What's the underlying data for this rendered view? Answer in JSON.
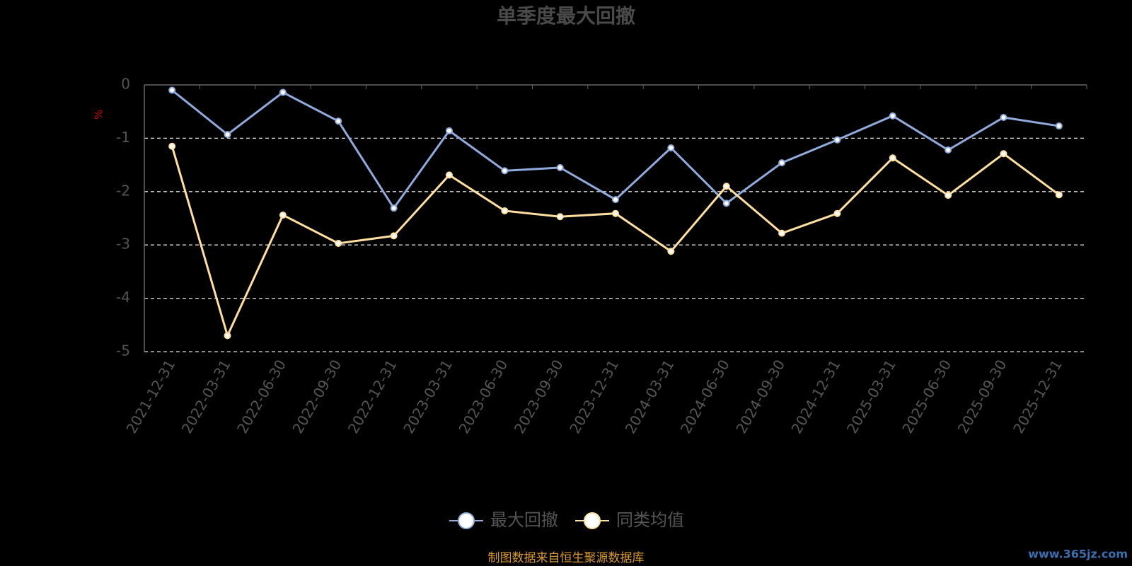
{
  "chart_data": {
    "type": "line",
    "title": "单季度最大回撤",
    "y_label": "%",
    "categories": [
      "2021-12-31",
      "2022-03-31",
      "2022-06-30",
      "2022-09-30",
      "2022-12-31",
      "2023-03-31",
      "2023-06-30",
      "2023-09-30",
      "2023-12-31",
      "2024-03-31",
      "2024-06-30",
      "2024-09-30",
      "2024-12-31",
      "2025-03-31",
      "2025-06-30",
      "2025-09-30",
      "2025-12-31"
    ],
    "series": [
      {
        "name": "最大回撤",
        "color": "#8faadc",
        "values": [
          -0.1,
          -0.93,
          -0.14,
          -0.68,
          -2.31,
          -0.86,
          -1.61,
          -1.55,
          -2.15,
          -1.18,
          -2.22,
          -1.46,
          -1.03,
          -0.58,
          -1.22,
          -0.61,
          -0.77
        ]
      },
      {
        "name": "同类均值",
        "color": "#ffe0a0",
        "values": [
          -1.15,
          -4.7,
          -2.44,
          -2.97,
          -2.83,
          -1.69,
          -2.36,
          -2.47,
          -2.41,
          -3.12,
          -1.9,
          -2.78,
          -2.41,
          -1.37,
          -2.07,
          -1.29,
          -2.06
        ]
      }
    ],
    "ylim": [
      -5,
      0
    ],
    "yticks": [
      0,
      -1,
      -2,
      -3,
      -4,
      -5
    ],
    "grid": true,
    "source": "制图数据来自恒生聚源数据库",
    "watermark": "www.365jz.com"
  }
}
